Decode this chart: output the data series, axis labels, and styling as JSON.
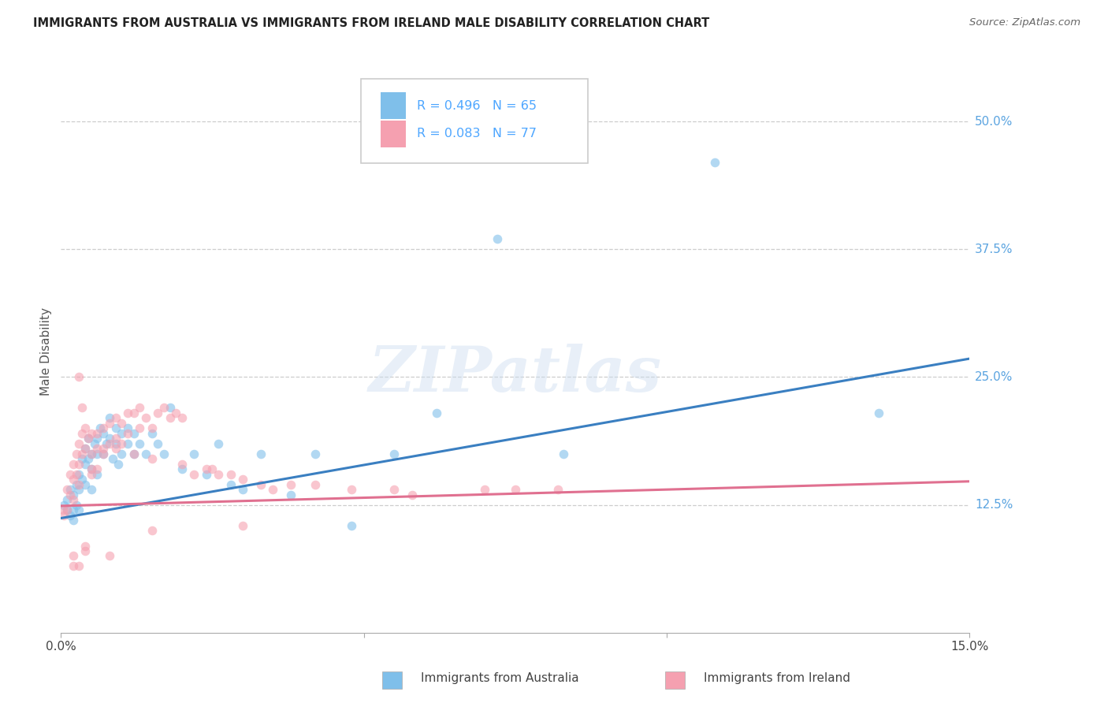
{
  "title": "IMMIGRANTS FROM AUSTRALIA VS IMMIGRANTS FROM IRELAND MALE DISABILITY CORRELATION CHART",
  "source": "Source: ZipAtlas.com",
  "ylabel": "Male Disability",
  "xlim": [
    0.0,
    0.15
  ],
  "ylim": [
    0.0,
    0.55
  ],
  "yticks": [
    0.125,
    0.25,
    0.375,
    0.5
  ],
  "yticklabels": [
    "12.5%",
    "25.0%",
    "37.5%",
    "50.0%"
  ],
  "grid_color": "#c8c8c8",
  "background_color": "#ffffff",
  "watermark_text": "ZIPatlas",
  "australia_color": "#7fbfea",
  "ireland_color": "#f5a0b0",
  "australia_line_color": "#3a7fc1",
  "ireland_line_color": "#e07090",
  "dot_alpha": 0.6,
  "dot_size": 70,
  "australia_x": [
    0.0005,
    0.001,
    0.001,
    0.0015,
    0.0015,
    0.002,
    0.002,
    0.002,
    0.0025,
    0.0025,
    0.003,
    0.003,
    0.003,
    0.0035,
    0.0035,
    0.004,
    0.004,
    0.004,
    0.0045,
    0.0045,
    0.005,
    0.005,
    0.005,
    0.0055,
    0.006,
    0.006,
    0.006,
    0.0065,
    0.007,
    0.007,
    0.0075,
    0.008,
    0.008,
    0.0085,
    0.009,
    0.009,
    0.0095,
    0.01,
    0.01,
    0.011,
    0.011,
    0.012,
    0.012,
    0.013,
    0.014,
    0.015,
    0.016,
    0.017,
    0.018,
    0.02,
    0.022,
    0.024,
    0.026,
    0.028,
    0.03,
    0.033,
    0.038,
    0.042,
    0.048,
    0.055,
    0.062,
    0.072,
    0.083,
    0.108,
    0.135
  ],
  "australia_y": [
    0.125,
    0.13,
    0.12,
    0.14,
    0.115,
    0.135,
    0.12,
    0.11,
    0.145,
    0.125,
    0.155,
    0.14,
    0.12,
    0.17,
    0.15,
    0.18,
    0.165,
    0.145,
    0.19,
    0.17,
    0.175,
    0.16,
    0.14,
    0.185,
    0.19,
    0.175,
    0.155,
    0.2,
    0.195,
    0.175,
    0.185,
    0.21,
    0.19,
    0.17,
    0.2,
    0.185,
    0.165,
    0.195,
    0.175,
    0.2,
    0.185,
    0.195,
    0.175,
    0.185,
    0.175,
    0.195,
    0.185,
    0.175,
    0.22,
    0.16,
    0.175,
    0.155,
    0.185,
    0.145,
    0.14,
    0.175,
    0.135,
    0.175,
    0.105,
    0.175,
    0.215,
    0.385,
    0.175,
    0.46,
    0.215
  ],
  "ireland_x": [
    0.0003,
    0.0005,
    0.001,
    0.001,
    0.0015,
    0.0015,
    0.002,
    0.002,
    0.002,
    0.0025,
    0.0025,
    0.003,
    0.003,
    0.003,
    0.0035,
    0.0035,
    0.004,
    0.004,
    0.0045,
    0.005,
    0.005,
    0.005,
    0.006,
    0.006,
    0.006,
    0.007,
    0.007,
    0.008,
    0.008,
    0.009,
    0.009,
    0.01,
    0.01,
    0.011,
    0.011,
    0.012,
    0.013,
    0.013,
    0.014,
    0.015,
    0.016,
    0.017,
    0.018,
    0.019,
    0.02,
    0.022,
    0.024,
    0.026,
    0.028,
    0.03,
    0.033,
    0.035,
    0.038,
    0.042,
    0.048,
    0.055,
    0.058,
    0.07,
    0.075,
    0.082,
    0.0035,
    0.005,
    0.007,
    0.009,
    0.012,
    0.015,
    0.02,
    0.025,
    0.03,
    0.015,
    0.008,
    0.004,
    0.002,
    0.002,
    0.003,
    0.004,
    0.003
  ],
  "ireland_y": [
    0.12,
    0.115,
    0.14,
    0.12,
    0.155,
    0.135,
    0.165,
    0.15,
    0.13,
    0.175,
    0.155,
    0.185,
    0.165,
    0.145,
    0.195,
    0.175,
    0.2,
    0.18,
    0.19,
    0.195,
    0.175,
    0.155,
    0.195,
    0.18,
    0.16,
    0.2,
    0.18,
    0.205,
    0.185,
    0.21,
    0.19,
    0.205,
    0.185,
    0.215,
    0.195,
    0.215,
    0.2,
    0.22,
    0.21,
    0.2,
    0.215,
    0.22,
    0.21,
    0.215,
    0.21,
    0.155,
    0.16,
    0.155,
    0.155,
    0.15,
    0.145,
    0.14,
    0.145,
    0.145,
    0.14,
    0.14,
    0.135,
    0.14,
    0.14,
    0.14,
    0.22,
    0.16,
    0.175,
    0.18,
    0.175,
    0.17,
    0.165,
    0.16,
    0.105,
    0.1,
    0.075,
    0.085,
    0.075,
    0.065,
    0.065,
    0.08,
    0.25
  ],
  "aus_trend_x": [
    0.0,
    0.15
  ],
  "aus_trend_y": [
    0.112,
    0.268
  ],
  "ire_trend_x": [
    0.0,
    0.15
  ],
  "ire_trend_y": [
    0.124,
    0.148
  ]
}
